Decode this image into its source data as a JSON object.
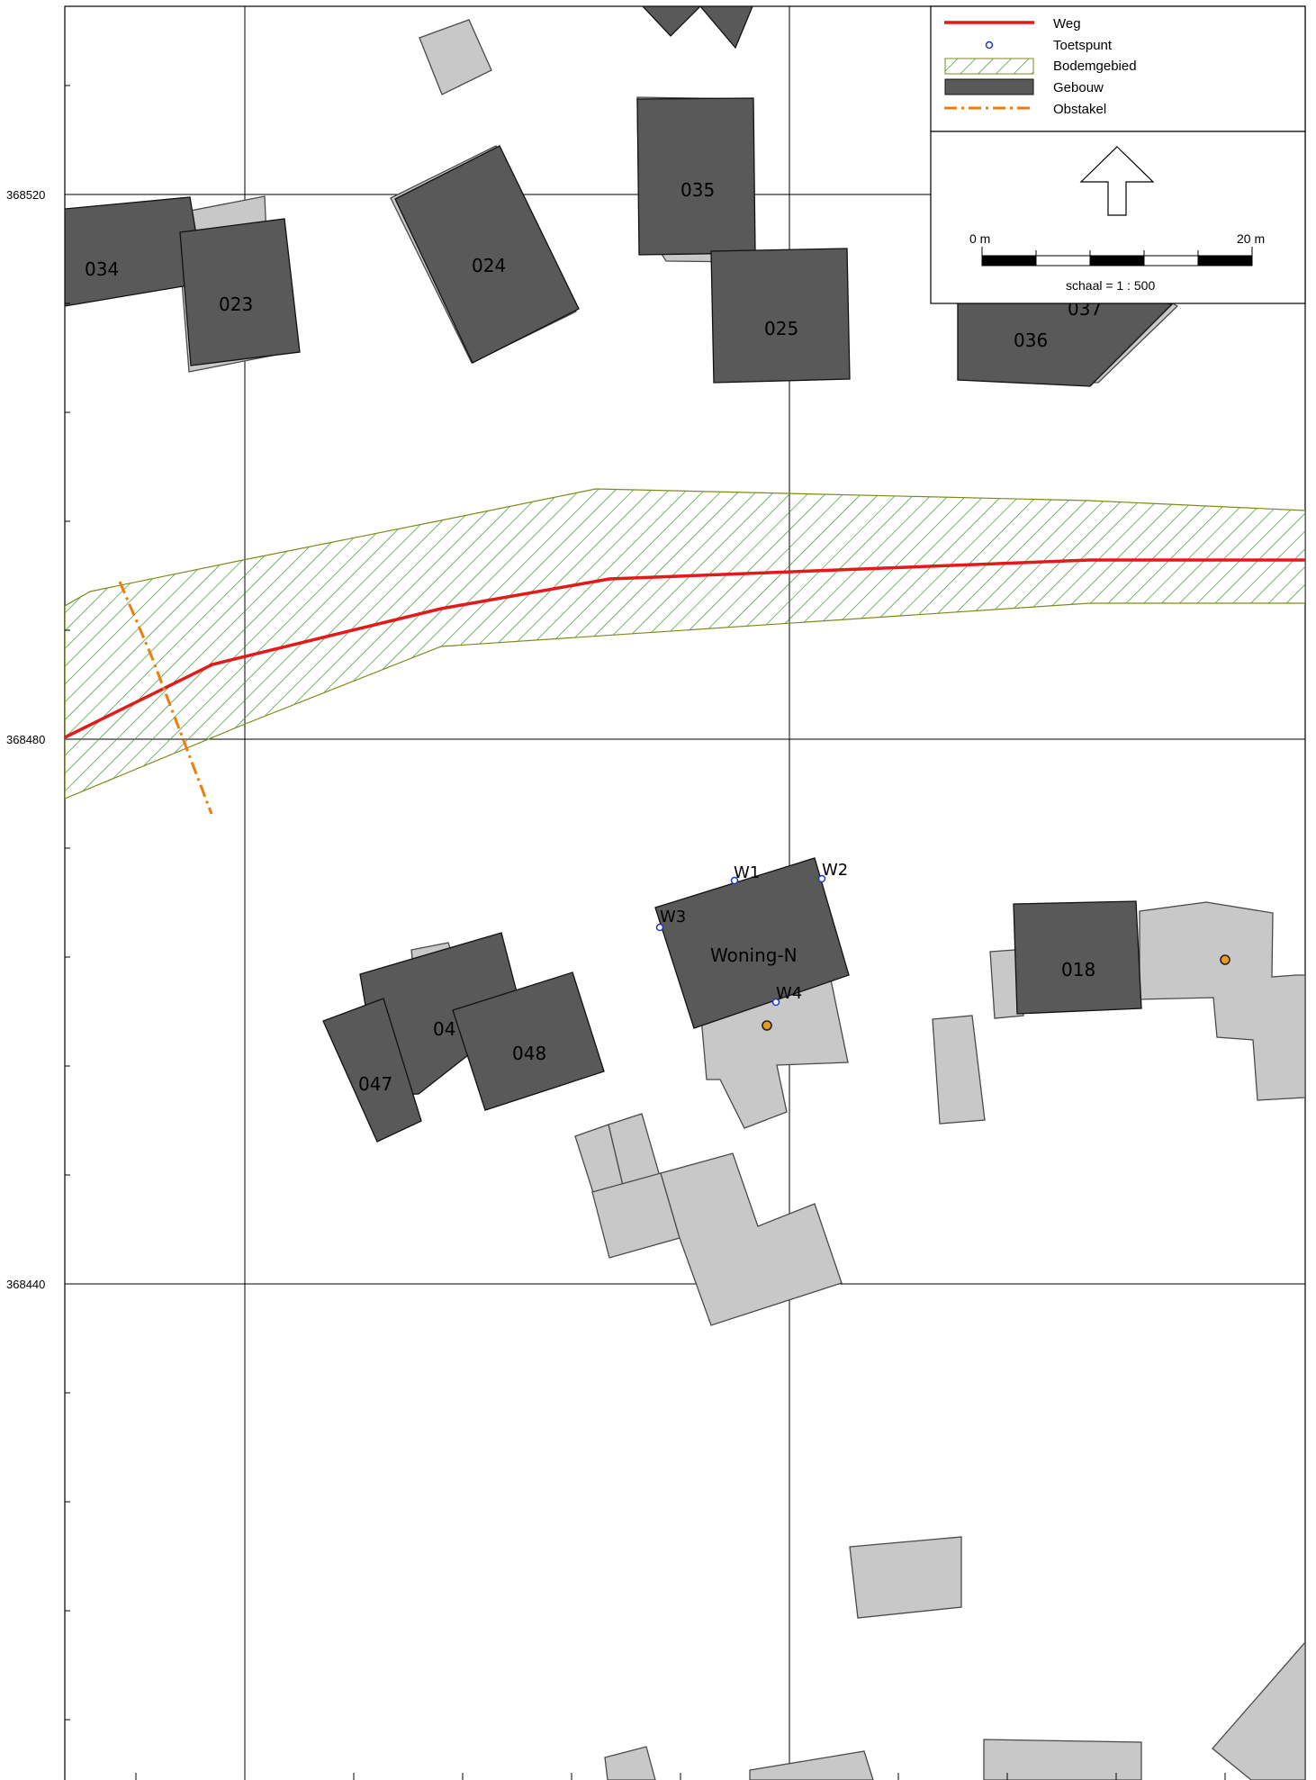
{
  "colors": {
    "building_main": "#595959",
    "building_ghost": "#c8c8c8",
    "road": "#e31a1c",
    "hatch": "#2e8b22",
    "obstacle": "#f07d0a",
    "testpoint": "#2233cc",
    "marker": "#e89a1a"
  },
  "axes": {
    "y_ticks": [
      "368520",
      "368480",
      "368440"
    ]
  },
  "labels": {
    "b034": "034",
    "b023": "023",
    "b024": "024",
    "b035": "035",
    "b025": "025",
    "b036": "036",
    "b037": "037",
    "b018": "018",
    "b048": "048",
    "b047": "047",
    "b04x": "04",
    "woning": "Woning-N"
  },
  "testpoints": {
    "w1": "W1",
    "w2": "W2",
    "w3": "W3",
    "w4": "W4"
  },
  "legend": {
    "items": [
      {
        "label": "Weg",
        "symbol": "road-line"
      },
      {
        "label": "Toetspunt",
        "symbol": "testpoint-icon"
      },
      {
        "label": "Bodemgebied",
        "symbol": "hatched-area"
      },
      {
        "label": "Gebouw",
        "symbol": "building-fill"
      },
      {
        "label": "Obstakel",
        "symbol": "dash-dot-line"
      }
    ],
    "north_arrow": "north-arrow-icon",
    "scale_start": "0 m",
    "scale_end": "20 m",
    "scale_text": "schaal = 1 : 500"
  }
}
